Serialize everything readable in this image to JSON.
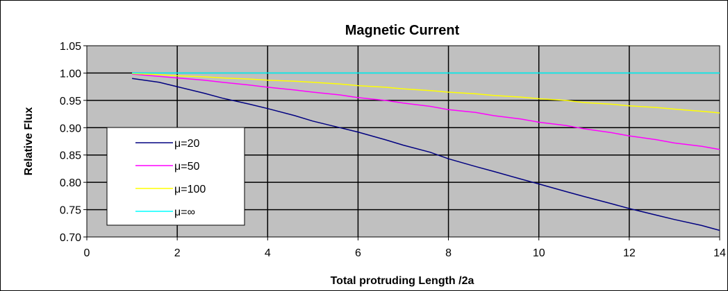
{
  "chart_data": {
    "type": "line",
    "title": "Magnetic Current",
    "xlabel": "Total protruding Length /2a",
    "ylabel": "Relative Flux",
    "xlim": [
      0,
      14
    ],
    "ylim": [
      0.7,
      1.05
    ],
    "x_ticks": [
      "0",
      "2",
      "4",
      "6",
      "8",
      "10",
      "12",
      "14"
    ],
    "y_ticks": [
      "0.70",
      "0.75",
      "0.80",
      "0.85",
      "0.90",
      "0.95",
      "1.00",
      "1.05"
    ],
    "grid": true,
    "plot_background": "#c0c0c0",
    "legend_position": "left",
    "series": [
      {
        "name": "μ=20",
        "color": "#000080",
        "x": [
          1,
          1.6,
          2,
          2.6,
          3,
          3.6,
          4,
          4.6,
          5,
          5.6,
          6,
          6.6,
          7,
          7.6,
          8,
          8.6,
          9,
          9.6,
          10,
          10.6,
          11,
          11.6,
          12,
          12.6,
          13,
          13.6,
          14
        ],
        "y": [
          0.99,
          0.983,
          0.975,
          0.963,
          0.954,
          0.943,
          0.935,
          0.922,
          0.912,
          0.9,
          0.892,
          0.878,
          0.868,
          0.855,
          0.843,
          0.829,
          0.82,
          0.806,
          0.797,
          0.783,
          0.774,
          0.761,
          0.752,
          0.74,
          0.732,
          0.721,
          0.712
        ]
      },
      {
        "name": "μ=50",
        "color": "#ff00ff",
        "x": [
          1,
          1.6,
          2,
          2.6,
          3,
          3.6,
          4,
          4.6,
          5,
          5.6,
          6,
          6.6,
          7,
          7.6,
          8,
          8.6,
          9,
          9.6,
          10,
          10.6,
          11,
          11.6,
          12,
          12.6,
          13,
          13.6,
          14
        ],
        "y": [
          0.998,
          0.994,
          0.991,
          0.987,
          0.983,
          0.978,
          0.974,
          0.969,
          0.965,
          0.96,
          0.955,
          0.95,
          0.945,
          0.939,
          0.933,
          0.928,
          0.922,
          0.916,
          0.91,
          0.904,
          0.898,
          0.891,
          0.885,
          0.878,
          0.872,
          0.866,
          0.86
        ]
      },
      {
        "name": "μ=100",
        "color": "#ffff00",
        "x": [
          1,
          1.6,
          2,
          2.6,
          3,
          3.6,
          4,
          4.6,
          5,
          5.6,
          6,
          6.6,
          7,
          7.6,
          8,
          8.6,
          9,
          9.6,
          10,
          10.6,
          11,
          11.6,
          12,
          12.6,
          13,
          13.6,
          14
        ],
        "y": [
          0.999,
          0.997,
          0.995,
          0.993,
          0.991,
          0.989,
          0.987,
          0.985,
          0.983,
          0.98,
          0.977,
          0.974,
          0.971,
          0.968,
          0.965,
          0.962,
          0.959,
          0.956,
          0.953,
          0.95,
          0.946,
          0.943,
          0.94,
          0.937,
          0.934,
          0.93,
          0.927
        ]
      },
      {
        "name": "μ=∞",
        "color": "#00ffff",
        "x": [
          1,
          14
        ],
        "y": [
          1.0,
          1.0
        ]
      }
    ]
  }
}
